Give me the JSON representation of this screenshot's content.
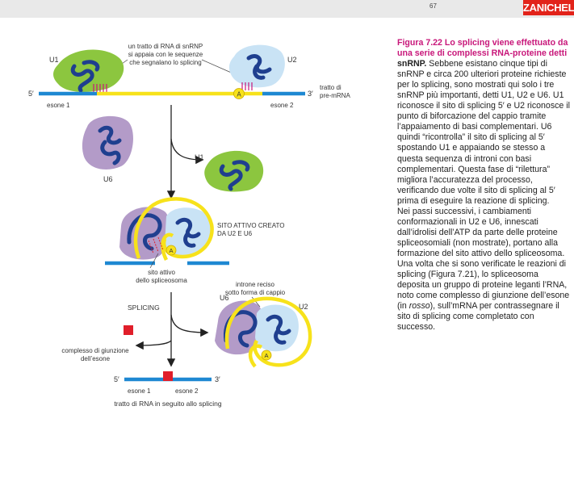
{
  "header": {
    "page_number": "67",
    "brand": "ZANICHELLI"
  },
  "caption": {
    "figure_label": "Figura 7.22",
    "title_rest": "Lo splicing viene effettuato da una serie di complessi RNA-proteine detti",
    "title_end": "snRNP.",
    "body_1": "Sebbene esistano cinque tipi di snRNP e circa 200 ulteriori proteine richieste per lo splicing, sono mostrati qui solo i tre snRNP più importanti, detti U1, U2 e U6. U1 riconosce il sito di splicing 5′ e U2 riconosce il punto di biforcazione del cappio tramite l’appaiamento di basi complementari. U6 quindi “ricontrolla” il sito di splicing al 5′ spostando U1 e appaiando se stesso a questa sequenza di introni con basi complementari. Questa fase di “rilettura” migliora l’accuratezza del processo, verificando due volte il sito di splicing al 5′ prima di eseguire la reazione di splicing.",
    "body_2": "Nei passi successivi, i cambiamenti conformazionali in U2 e U6, innescati dall’idrolisi dell’ATP da parte delle proteine spliceosomiali (non mostrate), portano alla formazione del sito attivo dello spliceosoma.",
    "body_3a": "Una volta che si sono verificate le reazioni di splicing (Figura 7.21), lo spliceosoma deposita un gruppo di proteine leganti l’RNA, noto come complesso di giunzione dell’esone (in",
    "body_3_italic": "rosso",
    "body_3b": "), sull’mRNA per contrassegnare il sito di splicing come completato con successo."
  },
  "diagram": {
    "label_pairing_1": "un tratto di RNA di snRNP",
    "label_pairing_2": "si appaia con le sequenze",
    "label_pairing_3": "che segnalano lo splicing",
    "u1": "U1",
    "u2": "U2",
    "u6": "U6",
    "five_prime": "5′",
    "three_prime": "3′",
    "exon1": "esone 1",
    "exon2": "esone 2",
    "pre_mrna_1": "tratto di",
    "pre_mrna_2": "pre-mRNA",
    "branch_a": "A",
    "active_site_1": "SITO ATTIVO CREATO",
    "active_site_2": "DA U2 E U6",
    "spliceosome_site_1": "sito attivo",
    "spliceosome_site_2": "dello spliceosoma",
    "lariat_1": "introne reciso",
    "lariat_2": "sotto forma di cappio",
    "splicing": "SPLICING",
    "ejc_1": "complesso di giunzione",
    "ejc_2": "dell’esone",
    "final_caption": "tratto di RNA in seguito allo splicing",
    "colors": {
      "u1_green": "#8cc63f",
      "u2_blue": "#c9e3f5",
      "u6_purple": "#b39bc8",
      "rna_navy": "#1f3f8f",
      "exon_blue": "#1e88d2",
      "intron_yellow": "#f7e21b",
      "ejc_red": "#e01e2a",
      "caption_magenta": "#c8177a"
    }
  }
}
